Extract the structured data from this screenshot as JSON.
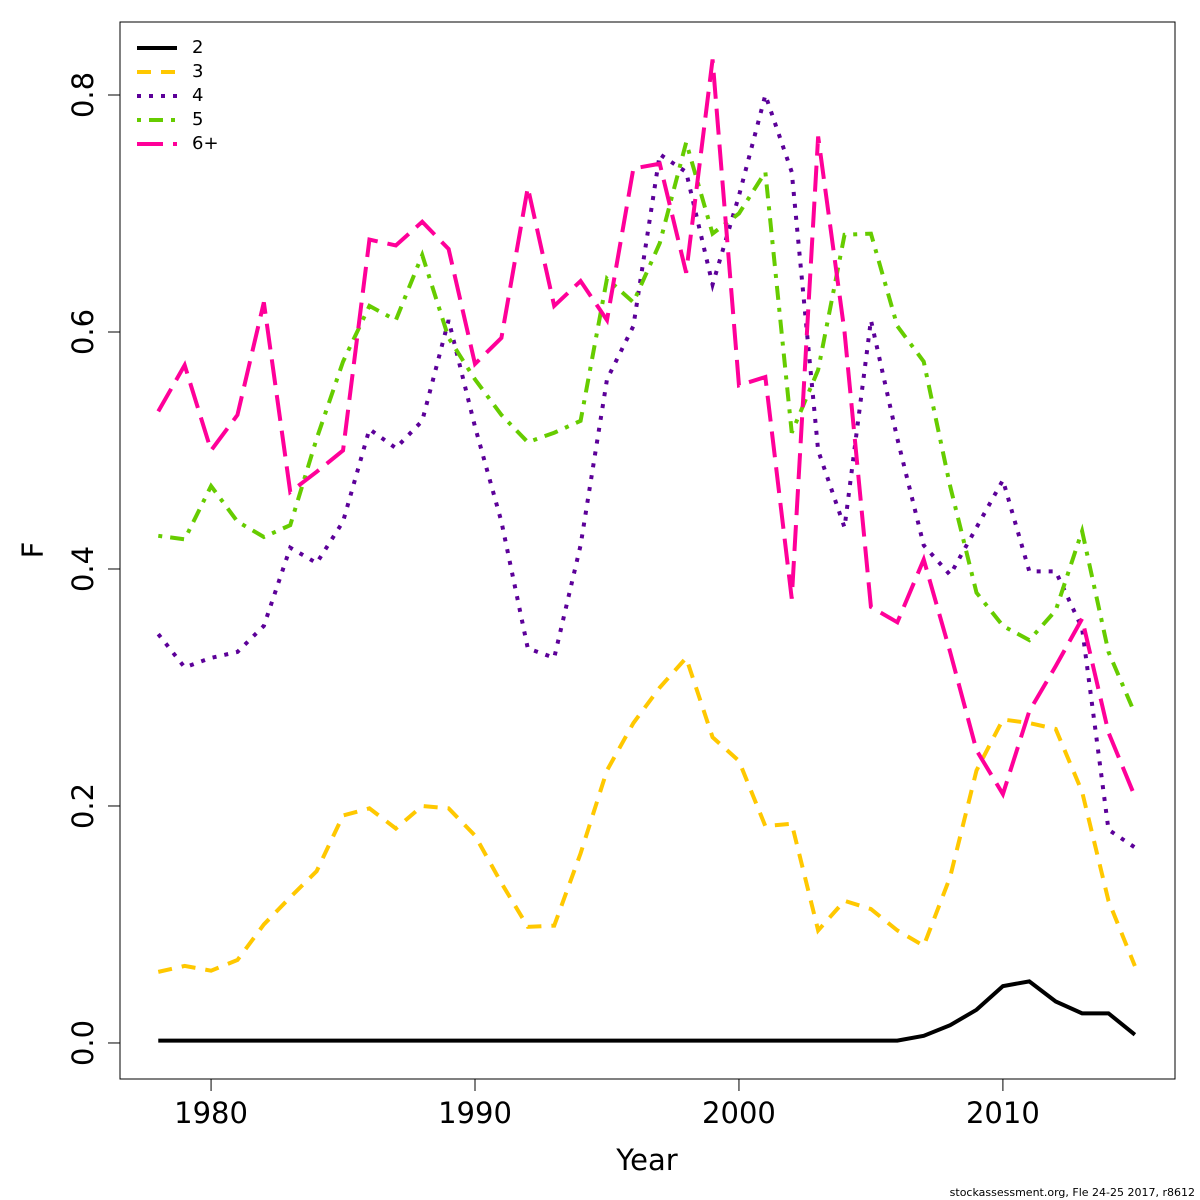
{
  "chart_data": {
    "type": "line",
    "xlabel": "Year",
    "ylabel": "F",
    "footer": "stockassessment.org, Fle 24-25 2017, r8612",
    "x": [
      1978,
      1979,
      1980,
      1981,
      1982,
      1983,
      1984,
      1985,
      1986,
      1987,
      1988,
      1989,
      1990,
      1991,
      1992,
      1993,
      1994,
      1995,
      1996,
      1997,
      1998,
      1999,
      2000,
      2001,
      2002,
      2003,
      2004,
      2005,
      2006,
      2007,
      2008,
      2009,
      2010,
      2011,
      2012,
      2013,
      2014,
      2015
    ],
    "xlim": [
      1976.55,
      2016.52
    ],
    "xticks": [
      1980,
      1990,
      2000,
      2010
    ],
    "ylim": [
      -0.0304,
      0.8616
    ],
    "yticks": [
      {
        "value": 0,
        "label": "0.0"
      },
      0.2,
      0.4,
      0.6,
      0.8
    ],
    "legend": "top-left",
    "series": [
      {
        "name": "2",
        "color": "#000000",
        "values": [
          0.002,
          0.002,
          0.002,
          0.002,
          0.002,
          0.002,
          0.002,
          0.002,
          0.002,
          0.002,
          0.002,
          0.002,
          0.002,
          0.002,
          0.002,
          0.002,
          0.002,
          0.002,
          0.002,
          0.002,
          0.002,
          0.002,
          0.002,
          0.002,
          0.002,
          0.002,
          0.002,
          0.002,
          0.002,
          0.006,
          0.015,
          0.028,
          0.048,
          0.052,
          0.035,
          0.025,
          0.025,
          0.007
        ]
      },
      {
        "name": "3",
        "color": "#ffc800",
        "values": [
          0.06,
          0.065,
          0.061,
          0.07,
          0.1,
          0.123,
          0.145,
          0.192,
          0.198,
          0.181,
          0.2,
          0.198,
          0.175,
          0.135,
          0.098,
          0.099,
          0.16,
          0.23,
          0.27,
          0.3,
          0.325,
          0.258,
          0.238,
          0.183,
          0.185,
          0.095,
          0.12,
          0.113,
          0.095,
          0.082,
          0.14,
          0.23,
          0.273,
          0.27,
          0.265,
          0.212,
          0.12,
          0.065
        ]
      },
      {
        "name": "4",
        "color": "#5c0099",
        "values": [
          0.345,
          0.317,
          0.325,
          0.33,
          0.352,
          0.418,
          0.405,
          0.44,
          0.518,
          0.502,
          0.525,
          0.61,
          0.52,
          0.44,
          0.333,
          0.325,
          0.42,
          0.56,
          0.605,
          0.75,
          0.735,
          0.64,
          0.715,
          0.8,
          0.735,
          0.5,
          0.435,
          0.61,
          0.51,
          0.42,
          0.395,
          0.435,
          0.475,
          0.398,
          0.398,
          0.35,
          0.18,
          0.165
        ]
      },
      {
        "name": "5",
        "color": "#66cc00",
        "values": [
          0.428,
          0.425,
          0.47,
          0.44,
          0.427,
          0.437,
          0.51,
          0.575,
          0.622,
          0.61,
          0.665,
          0.595,
          0.56,
          0.53,
          0.507,
          0.515,
          0.525,
          0.645,
          0.625,
          0.675,
          0.76,
          0.683,
          0.7,
          0.735,
          0.515,
          0.568,
          0.682,
          0.683,
          0.605,
          0.575,
          0.47,
          0.38,
          0.352,
          0.34,
          0.365,
          0.432,
          0.33,
          0.278
        ]
      },
      {
        "name": "6+",
        "color": "#ff0099",
        "values": [
          0.533,
          0.572,
          0.5,
          0.53,
          0.625,
          0.465,
          0.482,
          0.5,
          0.678,
          0.673,
          0.693,
          0.67,
          0.573,
          0.595,
          0.722,
          0.622,
          0.643,
          0.61,
          0.738,
          0.742,
          0.65,
          0.83,
          0.555,
          0.562,
          0.375,
          0.765,
          0.6,
          0.368,
          0.355,
          0.408,
          0.33,
          0.247,
          0.21,
          0.28,
          0.318,
          0.358,
          0.262,
          0.208
        ]
      }
    ]
  }
}
